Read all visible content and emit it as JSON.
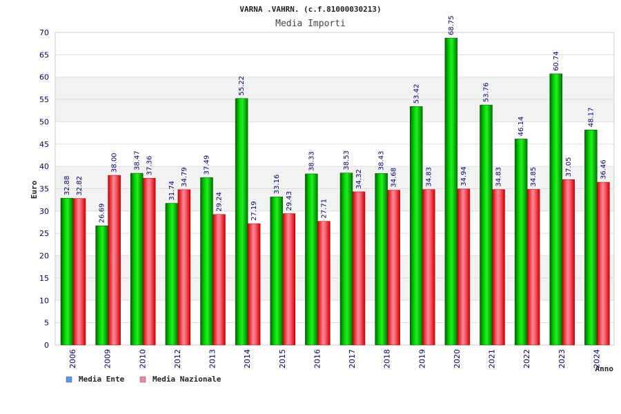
{
  "chart_data": {
    "type": "bar",
    "title": "VARNA .VAHRN. (c.f.81000030213)",
    "subtitle": "Media Importi",
    "xlabel": "Anno",
    "ylabel": "Euro",
    "ylim": [
      0,
      70
    ],
    "yticks": [
      0,
      5,
      10,
      15,
      20,
      25,
      30,
      35,
      40,
      45,
      50,
      55,
      60,
      65,
      70
    ],
    "grid": true,
    "legend_position": "bottom-left",
    "categories": [
      "2006",
      "2009",
      "2010",
      "2012",
      "2013",
      "2014",
      "2015",
      "2016",
      "2017",
      "2018",
      "2019",
      "2020",
      "2021",
      "2022",
      "2023",
      "2024"
    ],
    "series": [
      {
        "name": "Media Ente",
        "legend_color": "#5599ee",
        "bar_color": "#00bb00",
        "values": [
          32.88,
          26.69,
          38.47,
          31.74,
          37.49,
          55.22,
          33.16,
          38.33,
          38.53,
          38.43,
          53.42,
          68.75,
          53.76,
          46.14,
          60.74,
          48.17
        ],
        "labels": [
          "32.88",
          "26.69",
          "38.47",
          "31.74",
          "37.49",
          "55.22",
          "33.16",
          "38.33",
          "38.53",
          "38.43",
          "53.42",
          "68.75",
          "53.76",
          "46.14",
          "60.74",
          "48.17"
        ]
      },
      {
        "name": "Media Nazionale",
        "legend_color": "#ee88aa",
        "bar_color": "#ee2222",
        "values": [
          32.82,
          38.0,
          37.36,
          34.79,
          29.24,
          27.19,
          29.43,
          27.71,
          34.32,
          34.68,
          34.83,
          34.94,
          34.83,
          34.85,
          37.05,
          36.46
        ],
        "labels": [
          "32.82",
          "38.00",
          "37.36",
          "34.79",
          "29.24",
          "27.19",
          "29.43",
          "27.71",
          "34.32",
          "34.68",
          "34.83",
          "34.94",
          "34.83",
          "34.85",
          "37.05",
          "36.46"
        ]
      }
    ]
  }
}
